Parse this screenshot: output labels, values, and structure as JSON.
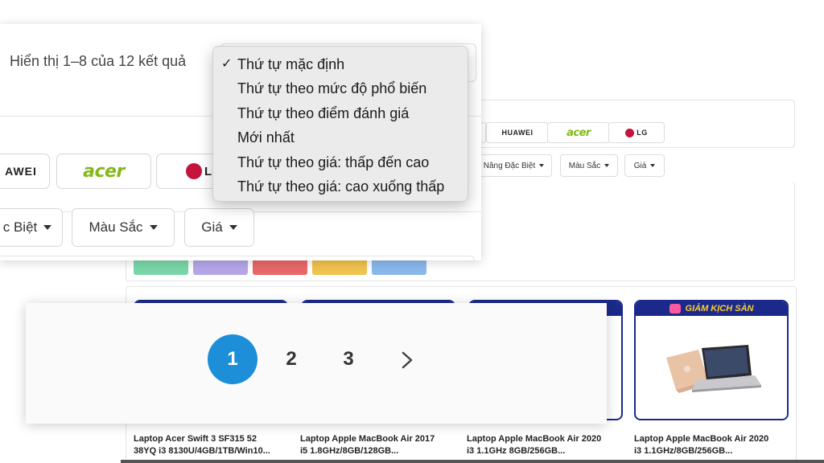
{
  "results": {
    "count_text": "Hiển thị 1–8 của 12 kết quả"
  },
  "sort_menu": {
    "selected_index": 0,
    "check_mark": "✓",
    "options": [
      "Thứ tự mặc định",
      "Thứ tự theo mức độ phổ biến",
      "Thứ tự theo điểm đánh giá",
      "Mới nhất",
      "Thứ tự theo giá: thấp đến cao",
      "Thứ tự theo giá: cao xuống thấp"
    ]
  },
  "brands": {
    "huawei": "HUAWEI",
    "huawei_partial": "AWEI",
    "acer": "acer",
    "lg": "LG",
    "lg_partial": "L"
  },
  "filters": {
    "special": "Năng Đặc Biệt",
    "special_partial": "c Biệt",
    "color": "Màu Sắc",
    "price": "Giá"
  },
  "swatch_colors": [
    "#79d6a8",
    "#b5a6e8",
    "#e86868",
    "#f0c24e",
    "#8ab8ec"
  ],
  "products": [
    {
      "title_line1": "Laptop Acer Swift 3 SF315 52",
      "title_line2": "38YQ i3 8130U/4GB/1TB/Win10..."
    },
    {
      "title_line1": "Laptop Apple MacBook Air 2017",
      "title_line2": "i5 1.8GHz/8GB/128GB..."
    },
    {
      "title_line1": "Laptop Apple MacBook Air 2020",
      "title_line2": "i3 1.1GHz 8GB/256GB..."
    },
    {
      "title_line1": "Laptop Apple MacBook Air 2020",
      "title_line2": "i3 1.1GHz/8GB/256GB..."
    }
  ],
  "promo_ribbon": "GIẢM KỊCH SÀN",
  "pagination": {
    "pages": [
      "1",
      "2",
      "3"
    ],
    "current": "1",
    "next_icon": "chevron-right-icon"
  },
  "accent": {
    "primary": "#1c8fd8",
    "promo_border": "#1b2a8a"
  }
}
